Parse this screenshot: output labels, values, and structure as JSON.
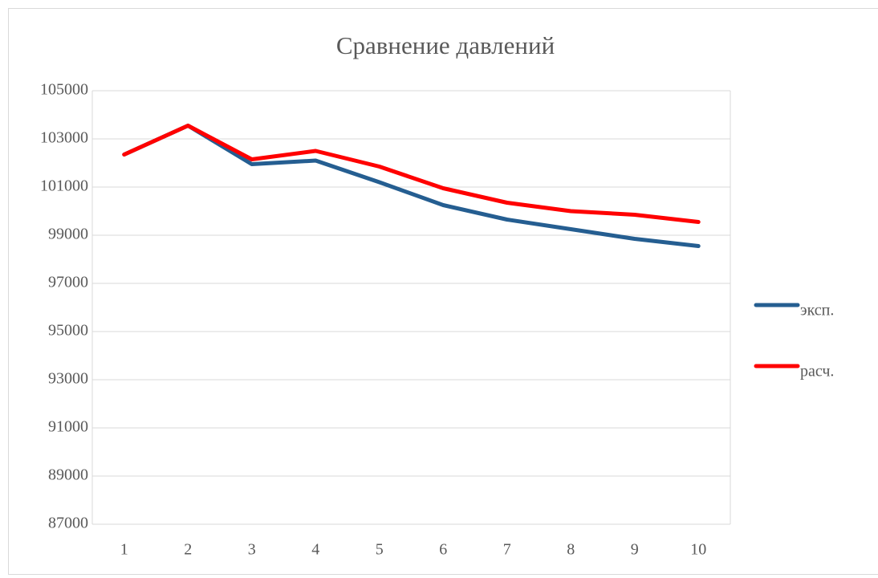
{
  "chart_data": {
    "type": "line",
    "title": "Сравнение давлений",
    "categories": [
      "1",
      "2",
      "3",
      "4",
      "5",
      "6",
      "7",
      "8",
      "9",
      "10"
    ],
    "series": [
      {
        "name": "эксп.",
        "color": "#255e91",
        "values": [
          102350,
          103550,
          101950,
          102100,
          101200,
          100250,
          99650,
          99250,
          98850,
          98550
        ]
      },
      {
        "name": "расч.",
        "color": "#ff0000",
        "values": [
          102350,
          103550,
          102150,
          102500,
          101850,
          100950,
          100350,
          100000,
          99850,
          99550
        ]
      }
    ],
    "ylim": [
      87000,
      105000
    ],
    "yticks": [
      87000,
      89000,
      91000,
      93000,
      95000,
      97000,
      99000,
      101000,
      103000,
      105000
    ],
    "grid": true,
    "legend": "right"
  }
}
